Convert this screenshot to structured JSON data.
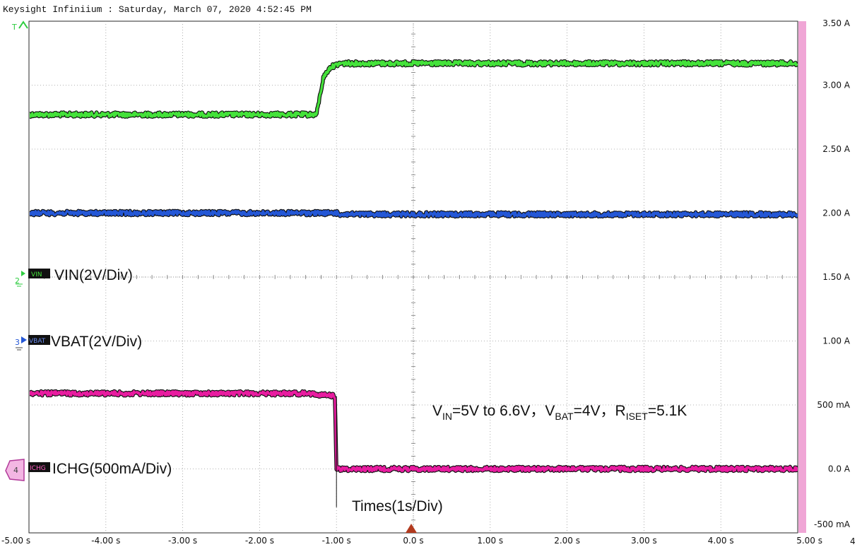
{
  "window": {
    "title": "Keysight Infiniium : Saturday, March 07, 2020 4:52:45 PM"
  },
  "chart_data": {
    "type": "line",
    "x_axis": {
      "unit": "s",
      "range": [
        -5,
        5
      ],
      "ticks": [
        -5,
        -4,
        -3,
        -2,
        -1,
        0,
        1,
        2,
        3,
        4,
        5
      ],
      "tick_labels": [
        "-5.00 s",
        "-4.00 s",
        "-3.00 s",
        "-2.00 s",
        "-1.00 s",
        "0.0 s",
        "1.00 s",
        "2.00 s",
        "3.00 s",
        "4.00 s",
        "5.00 s"
      ]
    },
    "y_axis": {
      "unit": "A",
      "range": [
        -0.5,
        3.5
      ],
      "ticks": [
        3.5,
        3.0,
        2.5,
        2.0,
        1.5,
        1.0,
        0.5,
        0.0,
        -0.5
      ],
      "tick_labels": [
        "3.50 A",
        "3.00 A",
        "2.50 A",
        "2.00 A",
        "1.50 A",
        "1.00 A",
        "500 mA",
        "0.0 A",
        "-500 mA"
      ]
    },
    "grid": true,
    "corner_label": "4",
    "series": [
      {
        "name": "VIN",
        "label": "VIN(2V/Div)",
        "color": "#44e23a",
        "marker_tag": "VIN",
        "marker_number": "2",
        "points": [
          [
            -5,
            2.77
          ],
          [
            -1.26,
            2.77
          ],
          [
            -1.17,
            3.06
          ],
          [
            -1.08,
            3.14
          ],
          [
            -0.95,
            3.17
          ],
          [
            5,
            3.17
          ]
        ]
      },
      {
        "name": "VBAT",
        "label": "VBAT(2V/Div)",
        "color": "#2457d6",
        "marker_tag": "VBAT",
        "marker_number": "3",
        "points": [
          [
            -5,
            2.0
          ],
          [
            -1,
            2.0
          ],
          [
            -0.95,
            1.99
          ],
          [
            5,
            1.99
          ]
        ]
      },
      {
        "name": "ICHG",
        "label": "ICHG(500mA/Div)",
        "color": "#e81ca0",
        "marker_tag": "ICHG",
        "marker_number": "4",
        "points": [
          [
            -5,
            0.59
          ],
          [
            -1.4,
            0.59
          ],
          [
            -1.02,
            0.57
          ],
          [
            -1,
            0.0
          ],
          [
            5,
            0.0
          ]
        ]
      }
    ],
    "annotations": [
      {
        "text": "Times(1s/Div)"
      }
    ],
    "condition_text": {
      "v": "V",
      "vin_sub": "IN",
      "vin_val": "=5V to 6.6V，",
      "vbat_sub": "BAT",
      "vbat_val": "=4V，",
      "r": "R",
      "riset_sub": "ISET",
      "riset_val": "=5.1K"
    }
  }
}
